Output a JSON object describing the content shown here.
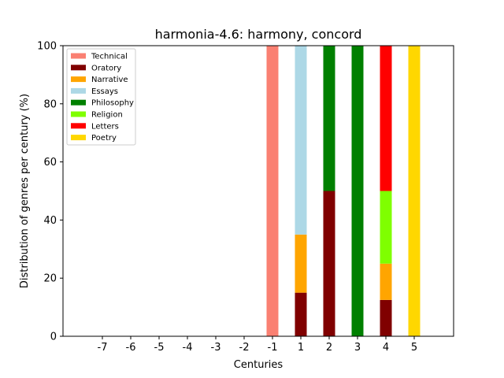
{
  "chart_data": {
    "type": "bar",
    "stacked": true,
    "title": "harmonia-4.6: harmony, concord",
    "xlabel": "Centuries",
    "ylabel": "Distribution of genres per century (%)",
    "categories": [
      "-7",
      "-6",
      "-5",
      "-4",
      "-3",
      "-2",
      "-1",
      "1",
      "2",
      "3",
      "4",
      "5"
    ],
    "ylim": [
      0,
      100
    ],
    "yticks": [
      0,
      20,
      40,
      60,
      80,
      100
    ],
    "grid": false,
    "legend_position": "top-left",
    "series": [
      {
        "name": "Technical",
        "color": "#fa8072",
        "values": [
          0,
          0,
          0,
          0,
          0,
          0,
          100,
          0,
          0,
          0,
          0,
          0
        ]
      },
      {
        "name": "Oratory",
        "color": "#800000",
        "values": [
          0,
          0,
          0,
          0,
          0,
          0,
          0,
          15,
          50,
          0,
          12.5,
          0
        ]
      },
      {
        "name": "Narrative",
        "color": "#ffa500",
        "values": [
          0,
          0,
          0,
          0,
          0,
          0,
          0,
          20,
          0,
          0,
          12.5,
          0
        ]
      },
      {
        "name": "Essays",
        "color": "#add8e6",
        "values": [
          0,
          0,
          0,
          0,
          0,
          0,
          0,
          65,
          0,
          0,
          0,
          0
        ]
      },
      {
        "name": "Philosophy",
        "color": "#008000",
        "values": [
          0,
          0,
          0,
          0,
          0,
          0,
          0,
          0,
          50,
          100,
          0,
          0
        ]
      },
      {
        "name": "Religion",
        "color": "#7fff00",
        "values": [
          0,
          0,
          0,
          0,
          0,
          0,
          0,
          0,
          0,
          0,
          25,
          0
        ]
      },
      {
        "name": "Letters",
        "color": "#ff0000",
        "values": [
          0,
          0,
          0,
          0,
          0,
          0,
          0,
          0,
          0,
          0,
          50,
          0
        ]
      },
      {
        "name": "Poetry",
        "color": "#ffd700",
        "values": [
          0,
          0,
          0,
          0,
          0,
          0,
          0,
          0,
          0,
          0,
          0,
          100
        ]
      }
    ]
  }
}
